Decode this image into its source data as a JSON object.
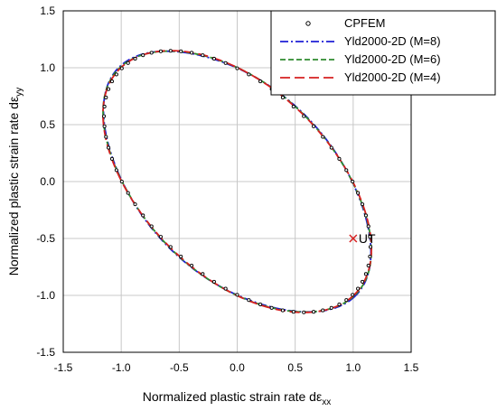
{
  "chart_data": {
    "type": "line",
    "xlabel": "Normalized plastic strain rate dε",
    "xlabel_sub": "xx",
    "ylabel": "Normalized plastic strain rate dε",
    "ylabel_sub": "yy",
    "xlim": [
      -1.5,
      1.5
    ],
    "ylim": [
      -1.5,
      1.5
    ],
    "xticks": [
      "-1.5",
      "-1.0",
      "-0.5",
      "0.0",
      "0.5",
      "1.0",
      "1.5"
    ],
    "yticks": [
      "-1.5",
      "-1.0",
      "-0.5",
      "0.0",
      "0.5",
      "1.0",
      "1.5"
    ],
    "grid": true,
    "legend_position": "top-right",
    "series": [
      {
        "name": "CPFEM",
        "style": "markers",
        "color": "#000000"
      },
      {
        "name": "Yld2000-2D (M=8)",
        "style": "dash-dot",
        "color": "#1f1fd6"
      },
      {
        "name": "Yld2000-2D (M=6)",
        "style": "dashed",
        "color": "#2e8b2e"
      },
      {
        "name": "Yld2000-2D (M=4)",
        "style": "long-dash",
        "color": "#d62020"
      }
    ],
    "annotations": [
      {
        "text": "UT",
        "x": 1.0,
        "y": -0.5
      }
    ]
  }
}
